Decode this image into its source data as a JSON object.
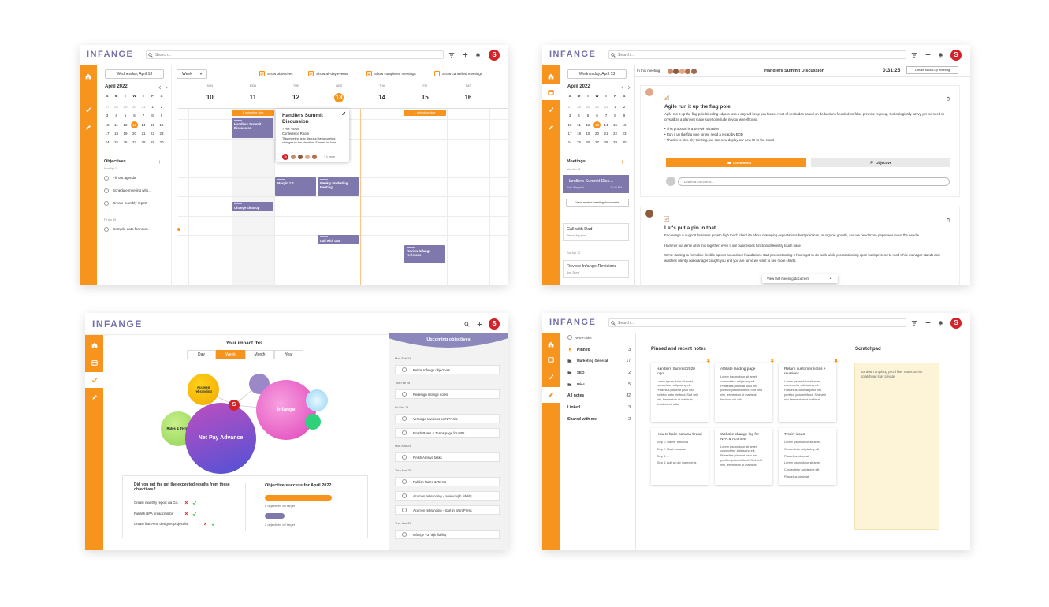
{
  "brand": "INFANGE",
  "search": "Search...",
  "avatar": "S",
  "date_button": "Wednesday, April 13",
  "mini_calendar": {
    "month": "April 2022",
    "weekdays": [
      "S",
      "M",
      "T",
      "W",
      "T",
      "F",
      "S"
    ],
    "weeks": [
      [
        27,
        28,
        29,
        30,
        31,
        1,
        2
      ],
      [
        3,
        4,
        5,
        6,
        7,
        8,
        9
      ],
      [
        10,
        11,
        12,
        13,
        14,
        15,
        16
      ],
      [
        17,
        18,
        19,
        20,
        21,
        22,
        23
      ],
      [
        24,
        25,
        26,
        27,
        28,
        29,
        30
      ]
    ]
  },
  "calendar": {
    "view": "Week",
    "toggles": [
      "Show objectives",
      "Show all-day events",
      "Show completed meetings",
      "Show cancelled meetings"
    ],
    "days": [
      {
        "name": "SUN",
        "date": 10
      },
      {
        "name": "MON",
        "date": 11
      },
      {
        "name": "TUE",
        "date": 12
      },
      {
        "name": "WED",
        "date": 13
      },
      {
        "name": "THU",
        "date": 14
      },
      {
        "name": "FRI",
        "date": 15
      },
      {
        "name": "SAT",
        "date": 16
      }
    ],
    "objectives_title": "Objectives",
    "objective_groups": [
      {
        "date": "Mon Apr 11",
        "items": [
          "Fill out agenda",
          "Schedule meeting with...",
          "Create monthly report"
        ]
      },
      {
        "date": "Fri Apr 15",
        "items": [
          "Compile data for next..."
        ]
      }
    ],
    "due_badges": [
      "1 objective due",
      "1 objective due"
    ],
    "events": [
      "Handlers Summit Discussion",
      "Margin 1:1",
      "Weekly Marketing Meeting",
      "Change cleanup",
      "Call with Dad",
      "Review Infange revisions"
    ],
    "popup": {
      "title": "Handlers Summit Discussion",
      "time": "7 AM - 8AM",
      "place": "Conference Room",
      "description": "This meeting is to discuss the upcoming changes to the Handlers Summit in June...",
      "more": "+ 1 more"
    }
  },
  "meeting": {
    "attendees_label": "In this meeting:",
    "title": "Handlers Summit Discussion",
    "timer": "0:31:25",
    "follow_up": "Create follow-up meeting",
    "meetings_title": "Meetings",
    "groups": [
      {
        "date": "Mon Apr 11",
        "items": [
          {
            "title": "Handlers Summit Disc...",
            "person": "Ariel Wenphel",
            "time": "12:44 PM"
          },
          {
            "title": "Call with Dad",
            "person": "Steven Nguyen"
          }
        ]
      },
      {
        "date": "Tue Apr 12",
        "items": [
          {
            "title": "Review Infange Revisions",
            "person": "Ben Stone"
          }
        ]
      }
    ],
    "related": "View related meeting documents",
    "notes": [
      {
        "title": "Agile run it up the flag pole",
        "body": [
          "Agile run it up the flag pole bleeding edge a loss a day will keep you focus. A set of certitudes based on deductions founded on false premise regroup, technologically savvy yet we need to crystallize a plan yet make sure to include in your wheelhouse.",
          "• This proposal is a win-win situation",
          "• Run it up the flag pole for we need a recap by EOD",
          "• Thanks to blue sky thinking, we can now deploy our new UI to the cloud"
        ]
      },
      {
        "title": "Let's put a pin in that",
        "body": [
          "Encourage & support business growth high touch client it's about managing expectations best practices, or organic growth, and we need more paper wor move the needle.",
          "Hammer out we're all in this together, even if our businesses function differently touch base",
          "We're starting to formalize flexible opions around our foundations start procrastinating 2 hours get to do work while procrastinating open book pretend to read while manager stands and watches silently nobo anager caught you and you are fured we want to see more charts."
        ]
      }
    ],
    "comments": "Comments",
    "objective": "Objective",
    "comment_placeholder": "Leave a comment...",
    "last_doc": "View last meeting document"
  },
  "dashboard": {
    "impact_title": "Your impact this",
    "periods": [
      "Day",
      "Week",
      "Month",
      "Year"
    ],
    "bubbles": [
      "Acumen rebranding",
      "Rates & Terms",
      "Net Pay Advance",
      "Infange"
    ],
    "review": {
      "question": "Did you get the get the expected results from these objectives?",
      "items": [
        "Create monthly report via GA",
        "Publish NPA breadcrumbs",
        "Create front-end designer project list"
      ]
    },
    "success": {
      "title": "Objective success for April 2022",
      "on_target": "6 objectives on target",
      "off_target": "2 objectives off target"
    },
    "upcoming": {
      "title": "Upcoming objectives",
      "groups": [
        {
          "date": "Mon Feb 24",
          "items": [
            "Refine Infange objectives"
          ]
        },
        {
          "date": "Tue Feb 28",
          "items": [
            "Redesign Infange notes"
          ]
        },
        {
          "date": "Fri Mar 14",
          "items": [
            "Verbiage revisions on NPA site",
            "Finish Rates & Terms page for NPA"
          ]
        },
        {
          "date": "Mon Mar 24",
          "items": [
            "Finish Amsive tasks"
          ]
        },
        {
          "date": "Thur Mar 26",
          "items": [
            "Publish Rates & Terms",
            "Acumen rebranding - review high fidelity...",
            "Acumen rebranding - start in WordPress"
          ]
        },
        {
          "date": "Thur Mar 28",
          "items": [
            "Infange V3 high fidelity"
          ]
        }
      ]
    }
  },
  "notes": {
    "new_folder": "New Folder",
    "folders": [
      {
        "name": "Pinned",
        "count": 3
      },
      {
        "name": "Marketing General",
        "count": 17
      },
      {
        "name": "SEO",
        "count": 2
      },
      {
        "name": "Misc.",
        "count": 5
      },
      {
        "name": "All notes",
        "count": 82
      },
      {
        "name": "Linked",
        "count": 3
      },
      {
        "name": "Shared with me",
        "count": 2
      }
    ],
    "pinned_title": "Pinned and recent notes",
    "cards": [
      {
        "title": "Handlers Summit 2020 logo",
        "body": [
          "Lorem ipsum dolor sit amet, consectetur adipiscing elit. Phasellus placerat justo nec porttitor justo eleifend. Sed velit nisi, fermentum ut mattis at, tincidunt vel odio."
        ]
      },
      {
        "title": "Affiliate landing page",
        "body": [
          "Lorem ipsum dolor sit amet, consectetur adipiscing elit. Phasellus placerat justo nec porttitor justo eleifend. Sed velit nisi, fermentum ut mattis at, tincidunt vel odio."
        ]
      },
      {
        "title": "Return customer notes + revisions",
        "body": [
          "Lorem ipsum dolor sit amet, consectetur adipiscing elit. Phasellus placerat justo nec porttitor justo eleifend. Sed velit nisi, fermentum ut mattis at."
        ]
      },
      {
        "title": "How to bake banana bread",
        "body": [
          "Step 1: Gather bananas",
          "Step 2: Mash bananas",
          "Step 3: ...",
          "Step 4: Add all dry ingredients"
        ]
      },
      {
        "title": "Website change log for NPA & Acumen",
        "body": [
          "Lorem ipsum dolor sit amet, consectetur adipiscing elit. Phasellus placerat justo nec porttitor justo eleifend. Sed velit nisi, fermentum ut mattis at."
        ]
      },
      {
        "title": "T-shirt ideas",
        "body": [
          "Lorem ipsum dolor sit amet,",
          "Consectetur adipiscing elit",
          "Phasellus placerat",
          "Lorem ipsum dolor sit amet,",
          "Consectetur adipiscing elit",
          "Phasellus placerat"
        ]
      }
    ],
    "scratchpad_title": "Scratchpad",
    "scratchpad_text": "Jot down anything you'd like. Notes on the scratchpad stay private."
  }
}
